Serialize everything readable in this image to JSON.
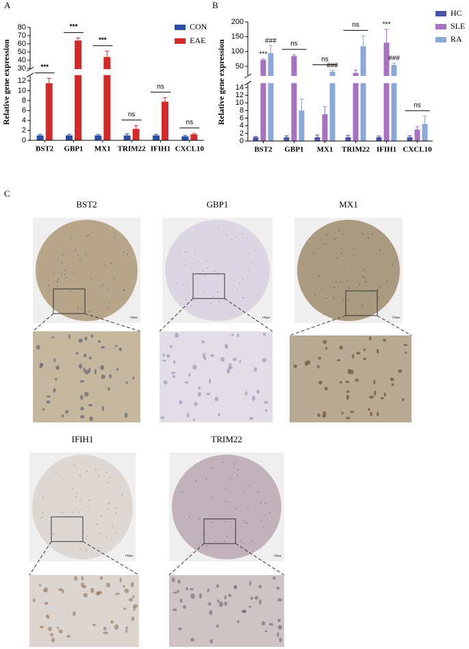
{
  "panel_labels": [
    "A",
    "B",
    "C"
  ],
  "chart_data": [
    {
      "type": "bar",
      "y_label": "Relative gene expression",
      "categories": [
        "BST2",
        "GBP1",
        "MX1",
        "TRIM22",
        "IFIH1",
        "CXCL10"
      ],
      "series": [
        {
          "name": "CON",
          "color": "#2b4ea6",
          "values": [
            1,
            1,
            1,
            1,
            1,
            0.8
          ],
          "errors": [
            0.2,
            0.2,
            0.2,
            0.3,
            0.2,
            0.2
          ]
        },
        {
          "name": "EAE",
          "color": "#d42a2a",
          "values": [
            11.5,
            64,
            44,
            2.3,
            7.8,
            1.2
          ],
          "errors": [
            1,
            3,
            7,
            0.7,
            0.8,
            0.2
          ]
        }
      ],
      "y_segments": [
        [
          0,
          13
        ],
        [
          30,
          80
        ]
      ],
      "yticks": [
        0,
        2,
        4,
        6,
        8,
        10,
        12,
        30,
        40,
        50,
        60,
        70,
        80
      ],
      "legend": "upper right",
      "annotations": [
        {
          "text": "***",
          "category": "BST2"
        },
        {
          "text": "***",
          "category": "GBP1"
        },
        {
          "text": "***",
          "category": "MX1"
        },
        {
          "text": "ns",
          "category": "TRIM22"
        },
        {
          "text": "ns",
          "category": "IFIH1"
        },
        {
          "text": "ns",
          "category": "CXCL10"
        }
      ]
    },
    {
      "type": "bar",
      "y_label": "Relative gene expression",
      "categories": [
        "BST2",
        "GBP1",
        "MX1",
        "TRIM22",
        "IFIH1",
        "CXCL10"
      ],
      "series": [
        {
          "name": "HC",
          "color": "#4a52a8",
          "values": [
            1,
            1,
            1,
            1,
            1,
            1
          ],
          "errors": [
            0.2,
            0.4,
            0.6,
            0.5,
            0.3,
            0.4
          ]
        },
        {
          "name": "SLE",
          "color": "#a872c2",
          "values": [
            72,
            85,
            7,
            28,
            130,
            3
          ],
          "errors": [
            3,
            4,
            2,
            10,
            45,
            0.8
          ]
        },
        {
          "name": "RA",
          "color": "#8aa8d8",
          "values": [
            95,
            8,
            32,
            118,
            55,
            4.5
          ],
          "errors": [
            25,
            3,
            5,
            35,
            6,
            2
          ]
        }
      ],
      "y_segments": [
        [
          0,
          15
        ],
        [
          20,
          200
        ]
      ],
      "yticks": [
        0,
        2,
        4,
        6,
        8,
        10,
        12,
        14,
        50,
        100,
        150,
        200
      ],
      "legend": "right",
      "annotations": [
        {
          "text": "***",
          "category": "BST2",
          "series": "SLE"
        },
        {
          "text": "###",
          "category": "BST2",
          "series": "RA"
        },
        {
          "text": "ns",
          "category": "GBP1"
        },
        {
          "text": "ns",
          "category": "MX1"
        },
        {
          "text": "###",
          "category": "MX1",
          "series": "RA"
        },
        {
          "text": "ns",
          "category": "TRIM22"
        },
        {
          "text": "***",
          "category": "IFIH1",
          "series": "SLE"
        },
        {
          "text": "###",
          "category": "IFIH1",
          "series": "RA"
        },
        {
          "text": "ns",
          "category": "CXCL10"
        }
      ]
    }
  ],
  "ihc": [
    {
      "label": "BST2",
      "scale": "100μm"
    },
    {
      "label": "GBP1",
      "scale": "100μm"
    },
    {
      "label": "MX1",
      "scale": "100μm"
    },
    {
      "label": "IFIH1",
      "scale": "100μm"
    },
    {
      "label": "TRIM22",
      "scale": "100μm"
    }
  ]
}
